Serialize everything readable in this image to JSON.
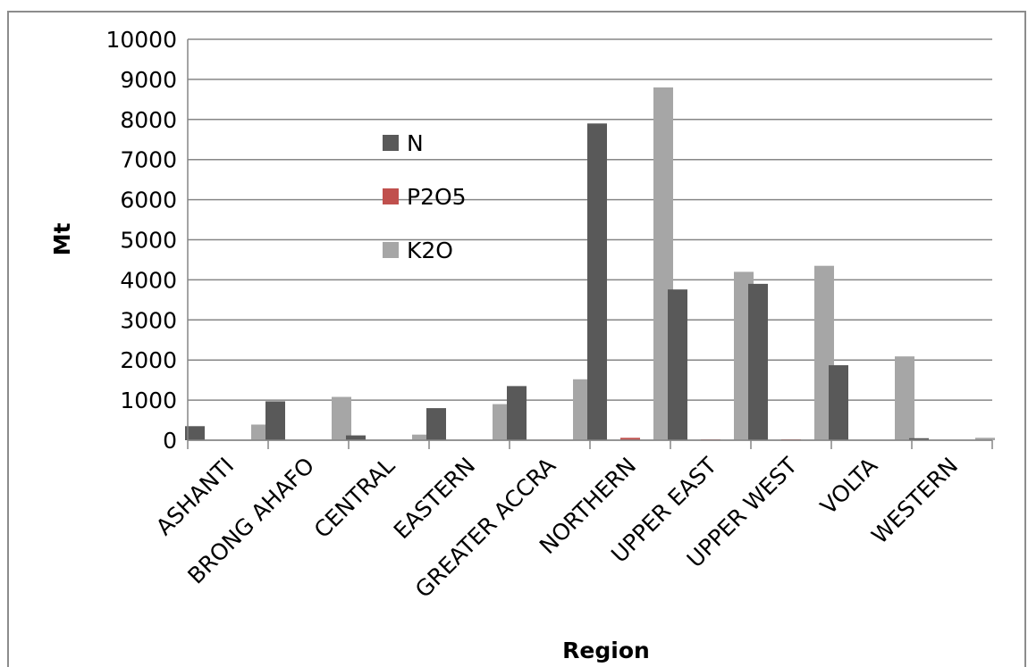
{
  "chart_data": {
    "type": "bar",
    "xlabel": "Region",
    "ylabel": "Mt",
    "ylim": [
      0,
      10000
    ],
    "yticks": [
      0,
      1000,
      2000,
      3000,
      4000,
      5000,
      6000,
      7000,
      8000,
      9000,
      10000
    ],
    "grid": "horizontal",
    "legend_position": "inside-upper-left",
    "categories": [
      "ASHANTI",
      "BRONG AHAFO",
      "CENTRAL",
      "EASTERN",
      "GREATER ACCRA",
      "NORTHERN",
      "UPPER EAST",
      "UPPER WEST",
      "VOLTA",
      "WESTERN"
    ],
    "series": [
      {
        "name": "N",
        "color": "#595959",
        "values": [
          350,
          970,
          120,
          800,
          1350,
          7900,
          3760,
          3900,
          1870,
          50
        ]
      },
      {
        "name": "P2O5",
        "color": "#c0504d",
        "values": [
          5,
          10,
          2,
          8,
          12,
          60,
          20,
          22,
          10,
          1
        ]
      },
      {
        "name": "K2O",
        "color": "#a6a6a6",
        "values": [
          390,
          1080,
          140,
          900,
          1520,
          8800,
          4200,
          4350,
          2090,
          60
        ]
      }
    ]
  }
}
